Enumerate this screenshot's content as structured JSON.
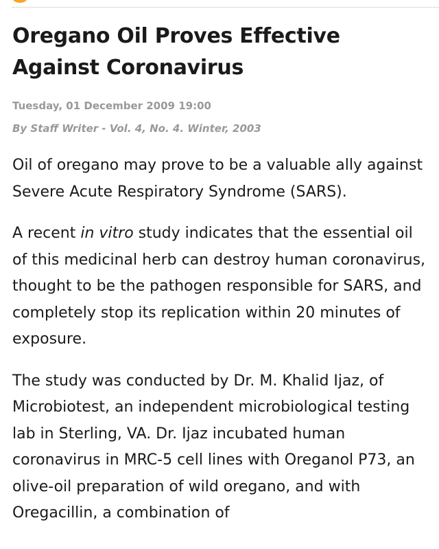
{
  "accent_color": "#f5a623",
  "article": {
    "title_line1": "Oregano Oil Proves Effective",
    "title_line2": "Against Coronavirus",
    "date": "Tuesday, 01 December 2009 19:00",
    "byline": "By Staff Writer - Vol. 4, No. 4. Winter, 2003",
    "paragraph1": "Oil of oregano may prove to be a valuable ally against Severe Acute Respiratory Syndrome (SARS).",
    "paragraph2_before": "A recent ",
    "paragraph2_italic": "in vitro",
    "paragraph2_after": " study indicates that the essential oil of this medicinal herb can destroy human coronavirus, thought to be the pathogen responsible for SARS, and completely stop its replication within 20 minutes of exposure.",
    "paragraph3": "The study was conducted by Dr. M. Khalid Ijaz, of Microbiotest, an independent microbiological testing lab in Sterling, VA. Dr. Ijaz incubated human coronavirus in MRC-5 cell lines with Oreganol P73, an olive-oil preparation of wild oregano, and with Oregacillin, a combination of"
  }
}
